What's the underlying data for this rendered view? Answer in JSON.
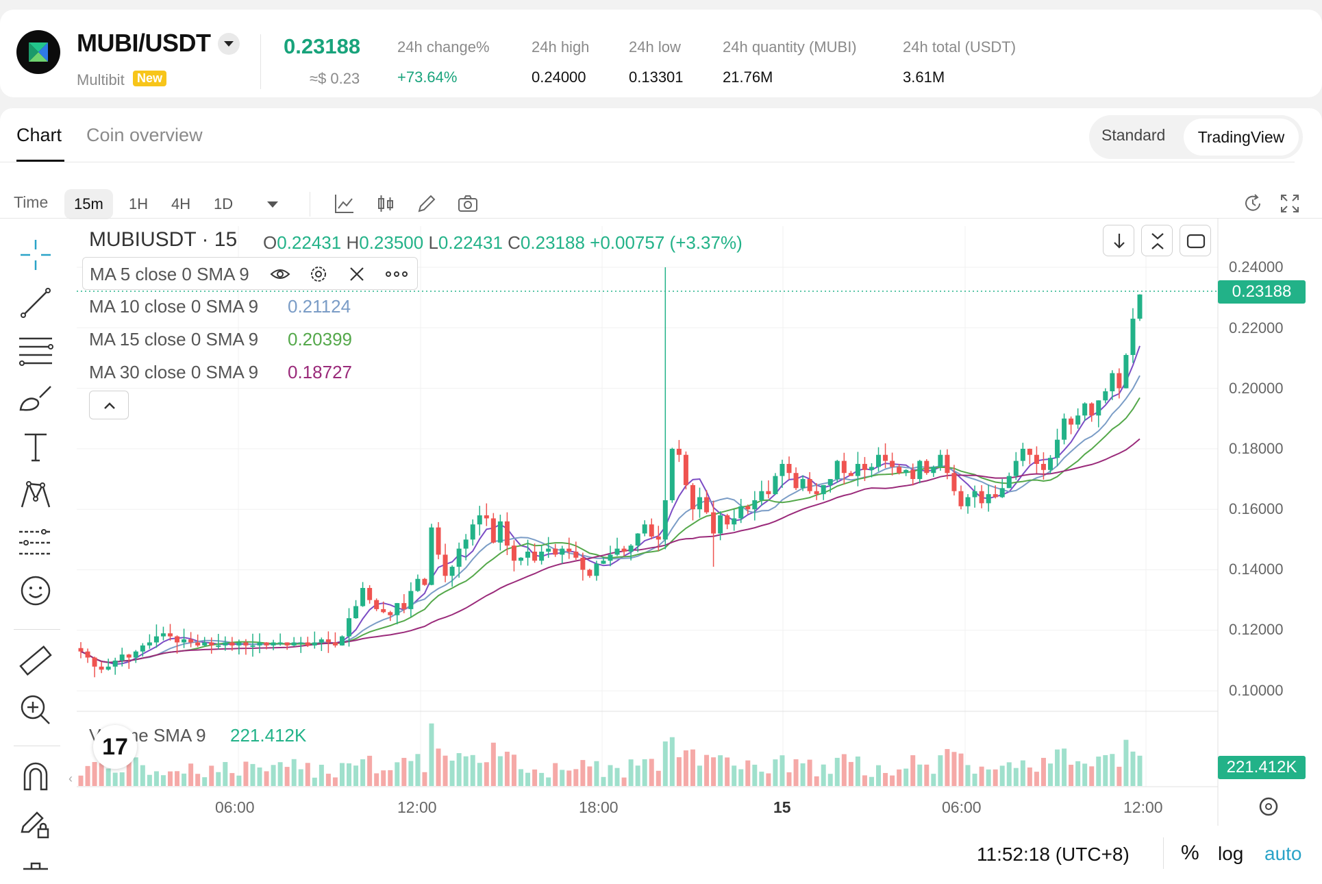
{
  "header": {
    "pair": "MUBI/USDT",
    "coin_name": "Multibit",
    "badge": "New",
    "price": "0.23188",
    "price_usd": "≈$ 0.23",
    "stats": [
      {
        "label": "24h change%",
        "value": "+73.64%"
      },
      {
        "label": "24h high",
        "value": "0.24000"
      },
      {
        "label": "24h low",
        "value": "0.13301"
      },
      {
        "label": "24h quantity (MUBI)",
        "value": "21.76M"
      },
      {
        "label": "24h total (USDT)",
        "value": "3.61M"
      }
    ]
  },
  "tabs": {
    "chart": "Chart",
    "coin_overview": "Coin overview"
  },
  "view_toggle": {
    "standard": "Standard",
    "tradingview": "TradingView"
  },
  "toolbar": {
    "time_label": "Time",
    "intervals": [
      "15m",
      "1H",
      "4H",
      "1D"
    ],
    "selected": "15m"
  },
  "legend": {
    "symbol": "MUBIUSDT · 15",
    "ohlc": {
      "o_label": "O",
      "o": "0.22431",
      "h_label": "H",
      "h": "0.23500",
      "l_label": "L",
      "l": "0.22431",
      "c_label": "C",
      "c": "0.23188",
      "change": "+0.00757 (+3.37%)"
    },
    "ma": [
      {
        "label": "MA 5 close 0 SMA 9",
        "value": "",
        "color": "#7b4cc4"
      },
      {
        "label": "MA 10 close 0 SMA 9",
        "value": "0.21124",
        "color": "#7a9cc6"
      },
      {
        "label": "MA 15 close 0 SMA 9",
        "value": "0.20399",
        "color": "#54a84a"
      },
      {
        "label": "MA 30 close 0 SMA 9",
        "value": "0.18727",
        "color": "#9a2a7a"
      }
    ],
    "volume_label": "Volume SMA 9",
    "volume_value": "221.412K"
  },
  "colors": {
    "up": "#22b288",
    "down": "#ef5350",
    "up_vol": "#9fe0cc",
    "down_vol": "#f5a9a7"
  },
  "chart_data": {
    "type": "candlestick",
    "y_ticks": [
      "0.24000",
      "0.22000",
      "0.20000",
      "0.18000",
      "0.16000",
      "0.14000",
      "0.12000",
      "0.10000"
    ],
    "x_ticks": [
      "06:00",
      "12:00",
      "18:00",
      "15",
      "06:00",
      "12:00"
    ],
    "ylim": [
      0.095,
      0.245
    ],
    "last_price": "0.23188",
    "last_volume": "221.412K",
    "closes": [
      0.113,
      0.111,
      0.108,
      0.107,
      0.108,
      0.11,
      0.112,
      0.111,
      0.113,
      0.115,
      0.116,
      0.118,
      0.119,
      0.118,
      0.116,
      0.117,
      0.116,
      0.115,
      0.116,
      0.115,
      0.115,
      0.116,
      0.115,
      0.116,
      0.115,
      0.115,
      0.116,
      0.115,
      0.116,
      0.116,
      0.115,
      0.116,
      0.116,
      0.115,
      0.116,
      0.117,
      0.116,
      0.115,
      0.118,
      0.124,
      0.128,
      0.134,
      0.13,
      0.127,
      0.126,
      0.125,
      0.129,
      0.127,
      0.133,
      0.137,
      0.135,
      0.154,
      0.145,
      0.138,
      0.141,
      0.147,
      0.15,
      0.155,
      0.158,
      0.157,
      0.149,
      0.156,
      0.148,
      0.143,
      0.144,
      0.146,
      0.143,
      0.146,
      0.147,
      0.145,
      0.147,
      0.146,
      0.144,
      0.14,
      0.138,
      0.142,
      0.143,
      0.145,
      0.147,
      0.146,
      0.148,
      0.152,
      0.155,
      0.151,
      0.15,
      0.163,
      0.18,
      0.178,
      0.168,
      0.16,
      0.164,
      0.159,
      0.152,
      0.158,
      0.155,
      0.157,
      0.161,
      0.16,
      0.163,
      0.166,
      0.165,
      0.171,
      0.175,
      0.172,
      0.167,
      0.17,
      0.166,
      0.165,
      0.168,
      0.17,
      0.176,
      0.172,
      0.171,
      0.175,
      0.173,
      0.174,
      0.178,
      0.176,
      0.174,
      0.172,
      0.173,
      0.17,
      0.176,
      0.172,
      0.174,
      0.178,
      0.172,
      0.166,
      0.161,
      0.164,
      0.166,
      0.162,
      0.165,
      0.164,
      0.167,
      0.171,
      0.176,
      0.18,
      0.178,
      0.175,
      0.173,
      0.177,
      0.183,
      0.19,
      0.188,
      0.191,
      0.195,
      0.191,
      0.196,
      0.199,
      0.205,
      0.2,
      0.211,
      0.223,
      0.231
    ]
  },
  "timezone_clock": "11:52:18 (UTC+8)",
  "scale_opts": {
    "pct": "%",
    "log": "log",
    "auto": "auto"
  },
  "tv_logo": "17"
}
